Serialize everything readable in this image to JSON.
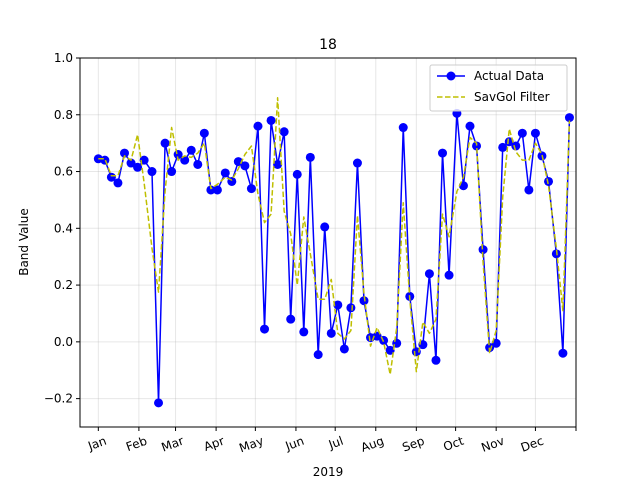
{
  "chart_data": {
    "type": "line",
    "title": "18",
    "xlabel": "2019",
    "ylabel": "Band Value",
    "xlim": [
      -14,
      365
    ],
    "ylim": [
      -0.3,
      1.0
    ],
    "grid": true,
    "legend_position": "top-right",
    "x_ticks": [
      {
        "label": "Jan",
        "x": 0
      },
      {
        "label": "Feb",
        "x": 31
      },
      {
        "label": "Mar",
        "x": 59
      },
      {
        "label": "Apr",
        "x": 90
      },
      {
        "label": "May",
        "x": 120
      },
      {
        "label": "Jun",
        "x": 151
      },
      {
        "label": "Jul",
        "x": 181
      },
      {
        "label": "Aug",
        "x": 212
      },
      {
        "label": "Sep",
        "x": 243
      },
      {
        "label": "Oct",
        "x": 273
      },
      {
        "label": "Nov",
        "x": 304
      },
      {
        "label": "Dec",
        "x": 334
      },
      {
        "label": "",
        "x": 365
      }
    ],
    "y_ticks": [
      {
        "label": "−0.2",
        "v": -0.2
      },
      {
        "label": "0.0",
        "v": 0.0
      },
      {
        "label": "0.2",
        "v": 0.2
      },
      {
        "label": "0.4",
        "v": 0.4
      },
      {
        "label": "0.6",
        "v": 0.6
      },
      {
        "label": "0.8",
        "v": 0.8
      },
      {
        "label": "1.0",
        "v": 1.0
      }
    ],
    "series": [
      {
        "name": "Actual Data",
        "color": "#0000ff",
        "style": "solid-with-markers",
        "x": [
          0,
          5,
          10,
          15,
          20,
          25,
          30,
          35,
          41,
          46,
          51,
          56,
          61,
          66,
          71,
          76,
          81,
          86,
          91,
          97,
          102,
          107,
          112,
          117,
          122,
          127,
          132,
          137,
          142,
          147,
          152,
          157,
          162,
          168,
          173,
          178,
          183,
          188,
          193,
          198,
          203,
          208,
          213,
          218,
          223,
          228,
          233,
          238,
          243,
          248,
          253,
          258,
          263,
          268,
          274,
          279,
          284,
          289,
          294,
          299,
          304,
          309,
          314,
          319,
          324,
          329,
          334,
          339,
          344,
          350,
          355,
          360
        ],
        "values": [
          0.645,
          0.64,
          0.58,
          0.56,
          0.665,
          0.63,
          0.615,
          0.64,
          0.6,
          -0.215,
          0.7,
          0.6,
          0.66,
          0.64,
          0.675,
          0.625,
          0.735,
          0.535,
          0.535,
          0.595,
          0.565,
          0.635,
          0.62,
          0.54,
          0.76,
          0.045,
          0.78,
          0.625,
          0.74,
          0.08,
          0.59,
          0.035,
          0.65,
          -0.045,
          0.405,
          0.03,
          0.13,
          -0.025,
          0.12,
          0.63,
          0.145,
          0.015,
          0.02,
          0.005,
          -0.03,
          -0.005,
          0.755,
          0.16,
          -0.035,
          -0.01,
          0.24,
          -0.065,
          0.665,
          0.235,
          0.805,
          0.55,
          0.76,
          0.69,
          0.325,
          -0.02,
          -0.005,
          0.685,
          0.705,
          0.69,
          0.735,
          0.535,
          0.735,
          0.655,
          0.565,
          0.31,
          -0.04,
          0.79
        ]
      },
      {
        "name": "SavGol Filter",
        "color": "#bfbf00",
        "style": "dashed",
        "x": [
          0,
          5,
          10,
          15,
          20,
          25,
          30,
          35,
          41,
          46,
          51,
          56,
          61,
          66,
          71,
          76,
          81,
          86,
          91,
          97,
          102,
          107,
          112,
          117,
          122,
          127,
          132,
          137,
          142,
          147,
          152,
          157,
          162,
          168,
          173,
          178,
          183,
          188,
          193,
          198,
          203,
          208,
          213,
          218,
          223,
          228,
          233,
          238,
          243,
          248,
          253,
          258,
          263,
          268,
          274,
          279,
          284,
          289,
          294,
          299,
          304,
          309,
          314,
          319,
          324,
          329,
          334,
          339,
          344,
          350,
          355,
          360
        ],
        "values": [
          0.645,
          0.645,
          0.585,
          0.585,
          0.655,
          0.64,
          0.73,
          0.56,
          0.33,
          0.175,
          0.53,
          0.755,
          0.64,
          0.655,
          0.65,
          0.665,
          0.7,
          0.54,
          0.555,
          0.58,
          0.57,
          0.61,
          0.66,
          0.69,
          0.52,
          0.42,
          0.45,
          0.86,
          0.46,
          0.38,
          0.2,
          0.44,
          0.31,
          0.15,
          0.15,
          0.22,
          0.03,
          0.01,
          0.04,
          0.445,
          0.17,
          -0.015,
          0.05,
          0.0,
          -0.115,
          0.05,
          0.49,
          0.15,
          -0.105,
          0.07,
          0.03,
          0.08,
          0.45,
          0.37,
          0.53,
          0.58,
          0.72,
          0.7,
          0.28,
          -0.04,
          0.04,
          0.51,
          0.75,
          0.67,
          0.64,
          0.64,
          0.7,
          0.66,
          0.55,
          0.33,
          0.11,
          0.78
        ]
      }
    ]
  }
}
